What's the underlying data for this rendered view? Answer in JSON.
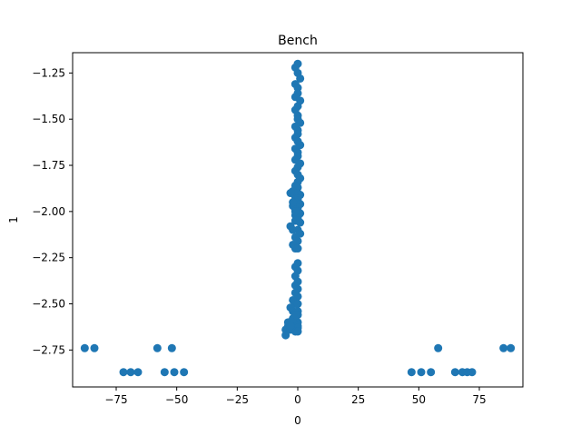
{
  "chart_data": {
    "type": "scatter",
    "title": "Bench",
    "xlabel": "0",
    "ylabel": "1",
    "xlim": [
      -93,
      93
    ],
    "ylim": [
      -2.95,
      -1.14
    ],
    "xticks": [
      -75,
      -50,
      -25,
      0,
      25,
      50,
      75
    ],
    "yticks": [
      -2.75,
      -2.5,
      -2.25,
      -2.0,
      -1.75,
      -1.5,
      -1.25
    ],
    "xtick_labels": [
      "−75",
      "−50",
      "−25",
      "0",
      "25",
      "50",
      "75"
    ],
    "ytick_labels": [
      "−2.75",
      "−2.50",
      "−2.25",
      "−2.00",
      "−1.75",
      "−1.50",
      "−1.25"
    ],
    "grid": false,
    "colors": {
      "point": "#1f77b4"
    },
    "series": [
      {
        "x": [
          -88,
          -84,
          -72,
          -69,
          -66,
          -58,
          -55,
          -52,
          -51,
          -47,
          47,
          51,
          55,
          58,
          65,
          68,
          70,
          72,
          85,
          88
        ],
        "y": [
          -2.74,
          -2.74,
          -2.87,
          -2.87,
          -2.87,
          -2.74,
          -2.87,
          -2.74,
          -2.87,
          -2.87,
          -2.87,
          -2.87,
          -2.87,
          -2.74,
          -2.87,
          -2.87,
          -2.87,
          -2.87,
          -2.74,
          -2.74
        ]
      },
      {
        "x": [
          0,
          -1,
          0,
          1,
          -1,
          0,
          0,
          -1,
          1,
          0,
          -1,
          0,
          0,
          1,
          -1,
          0,
          0,
          -1,
          0,
          1,
          -1,
          0,
          0,
          -1,
          1,
          0,
          -1,
          0,
          1,
          0,
          -1,
          0,
          -2,
          0,
          1,
          -1,
          0,
          0,
          -1,
          1,
          -2,
          0,
          -1,
          0,
          1,
          -1,
          0,
          0,
          -1,
          1,
          -3,
          -2,
          -1,
          0,
          -3,
          -2,
          0,
          1,
          -1,
          0,
          -2,
          -1,
          0,
          0,
          -1,
          0,
          -1,
          0,
          -1,
          0,
          -1,
          0,
          -2,
          -1,
          0,
          -3,
          -2,
          0,
          -1,
          0,
          -2,
          -1,
          0,
          -3,
          -1,
          0,
          -4,
          -2,
          0,
          -5,
          -3,
          -1,
          0,
          -4,
          -2,
          -1,
          -5,
          -3
        ],
        "y": [
          -1.2,
          -1.22,
          -1.25,
          -1.28,
          -1.31,
          -1.33,
          -1.36,
          -1.38,
          -1.4,
          -1.43,
          -1.45,
          -1.48,
          -1.5,
          -1.52,
          -1.54,
          -1.56,
          -1.58,
          -1.6,
          -1.62,
          -1.64,
          -1.66,
          -1.68,
          -1.7,
          -1.72,
          -1.74,
          -1.76,
          -1.78,
          -1.8,
          -1.82,
          -1.84,
          -1.86,
          -1.87,
          -1.89,
          -1.9,
          -1.91,
          -1.92,
          -1.93,
          -1.94,
          -1.95,
          -1.96,
          -1.97,
          -1.98,
          -1.99,
          -2.0,
          -2.01,
          -2.02,
          -2.03,
          -2.04,
          -2.05,
          -2.06,
          -1.9,
          -1.95,
          -2.0,
          -2.05,
          -2.08,
          -2.1,
          -2.1,
          -2.12,
          -2.14,
          -2.16,
          -2.18,
          -2.2,
          -2.2,
          -2.28,
          -2.3,
          -2.32,
          -2.35,
          -2.38,
          -2.4,
          -2.42,
          -2.44,
          -2.46,
          -2.48,
          -2.5,
          -2.5,
          -2.52,
          -2.54,
          -2.54,
          -2.55,
          -2.56,
          -2.58,
          -2.59,
          -2.6,
          -2.6,
          -2.61,
          -2.62,
          -2.62,
          -2.63,
          -2.63,
          -2.64,
          -2.64,
          -2.65,
          -2.65,
          -2.6,
          -2.58,
          -2.56,
          -2.67,
          -2.62
        ]
      }
    ]
  }
}
